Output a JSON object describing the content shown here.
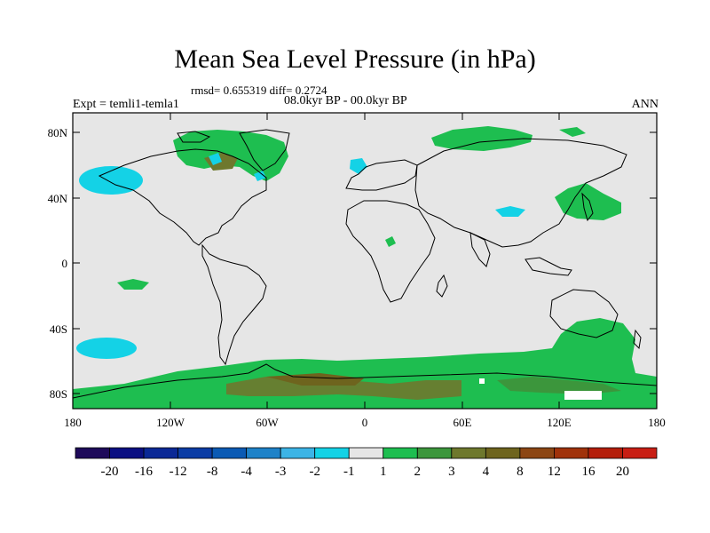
{
  "title": "Mean Sea Level Pressure (in hPa)",
  "stats": "rmsd= 0.655319 diff= 0.2724",
  "experiment": "Expt = temli1-temla1",
  "period": "08.0kyr BP - 00.0kyr BP",
  "season": "ANN",
  "map": {
    "projection": "cylindrical-equidistant",
    "lon_range": [
      -180,
      180
    ],
    "lat_range": [
      -90,
      90
    ],
    "background_color": "#e6e6e6",
    "lat_tick_labels": [
      "80N",
      "40N",
      "0",
      "40S",
      "80S"
    ],
    "lon_tick_labels": [
      "180",
      "120W",
      "60W",
      "0",
      "60E",
      "120E",
      "180"
    ]
  },
  "colorbar": {
    "labels": [
      "-20",
      "-16",
      "-12",
      "-8",
      "-4",
      "-3",
      "-2",
      "-1",
      "1",
      "2",
      "3",
      "4",
      "8",
      "12",
      "16",
      "20"
    ],
    "colors": [
      "#1e0a5a",
      "#0a0f82",
      "#0a2896",
      "#0a3ca5",
      "#0a5ab4",
      "#1e82c8",
      "#3cb4e6",
      "#14d2e6",
      "#e6e6e6",
      "#1ebe50",
      "#3c963c",
      "#6e782d",
      "#6e641e",
      "#8c4614",
      "#a0320a",
      "#b41e0a",
      "#c81e14"
    ]
  }
}
